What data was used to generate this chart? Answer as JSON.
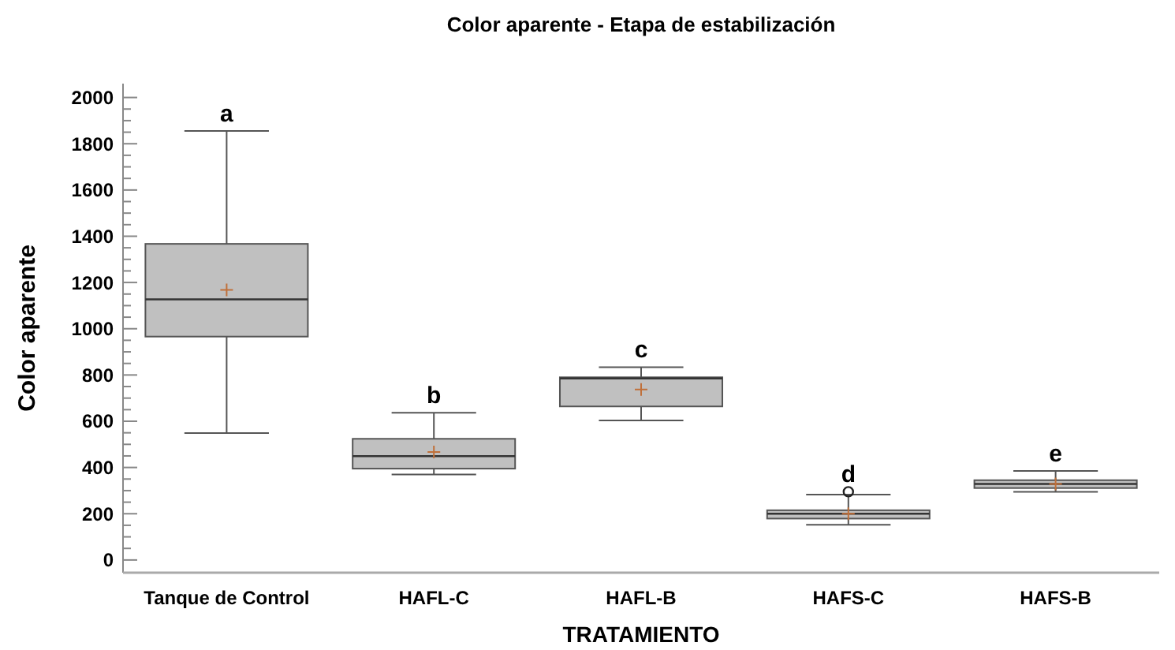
{
  "chart_data": {
    "type": "box",
    "title": "Color aparente - Etapa de estabilización",
    "xlabel": "TRATAMIENTO",
    "ylabel": "Color aparente",
    "categories": [
      "Tanque de Control",
      "HAFL-C",
      "HAFL-B",
      "HAFS-C",
      "HAFS-B"
    ],
    "color": "#c0c0c0",
    "boxes": [
      {
        "low": 549,
        "q1": 966,
        "median": 1127,
        "q3": 1367,
        "high": 1855,
        "mean": 1168
      },
      {
        "low": 370,
        "q1": 395,
        "median": 449,
        "q3": 524,
        "high": 637,
        "mean": 467
      },
      {
        "low": 603,
        "q1": 664,
        "median": 785,
        "q3": 790,
        "high": 834,
        "mean": 737
      },
      {
        "low": 152,
        "q1": 179,
        "median": 200,
        "q3": 215,
        "high": 283,
        "mean": 200,
        "outliers": [
          295
        ]
      },
      {
        "low": 295,
        "q1": 311,
        "median": 329,
        "q3": 345,
        "high": 385,
        "mean": 329
      }
    ],
    "ylim": [
      -55,
      2060
    ],
    "yticks": [
      0,
      {
        "value": 50,
        "label": null
      },
      {
        "value": 100,
        "label": null
      },
      {
        "value": 150,
        "label": null
      },
      200,
      {
        "value": 250,
        "label": null
      },
      {
        "value": 300,
        "label": null
      },
      {
        "value": 350,
        "label": null
      },
      400,
      {
        "value": 450,
        "label": null
      },
      {
        "value": 500,
        "label": null
      },
      {
        "value": 550,
        "label": null
      },
      600,
      {
        "value": 650,
        "label": null
      },
      {
        "value": 700,
        "label": null
      },
      {
        "value": 750,
        "label": null
      },
      800,
      {
        "value": 850,
        "label": null
      },
      {
        "value": 900,
        "label": null
      },
      {
        "value": 950,
        "label": null
      },
      1000,
      {
        "value": 1050,
        "label": null
      },
      {
        "value": 1100,
        "label": null
      },
      {
        "value": 1150,
        "label": null
      },
      1200,
      {
        "value": 1250,
        "label": null
      },
      {
        "value": 1300,
        "label": null
      },
      {
        "value": 1350,
        "label": null
      },
      1400,
      {
        "value": 1450,
        "label": null
      },
      {
        "value": 1500,
        "label": null
      },
      {
        "value": 1550,
        "label": null
      },
      1600,
      {
        "value": 1650,
        "label": null
      },
      {
        "value": 1700,
        "label": null
      },
      {
        "value": 1750,
        "label": null
      },
      1800,
      {
        "value": 1850,
        "label": null
      },
      {
        "value": 1900,
        "label": null
      },
      {
        "value": 1950,
        "label": null
      },
      2000
    ],
    "grid": false,
    "annotations": [
      "a",
      "b",
      "c",
      "d",
      "e"
    ]
  }
}
